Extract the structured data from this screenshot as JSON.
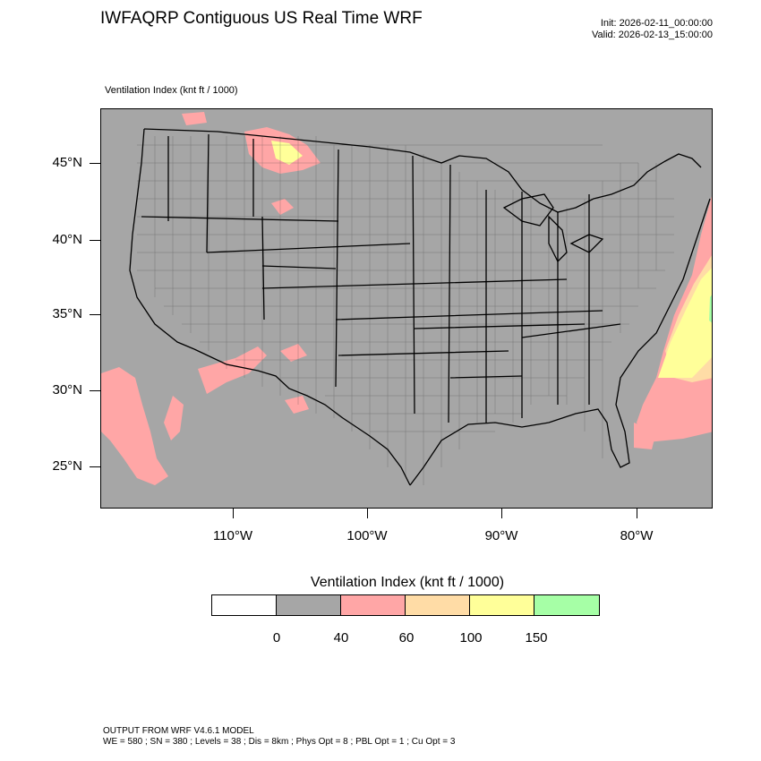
{
  "header": {
    "title": "IWFAQRP Contiguous US Real Time WRF",
    "init": "Init: 2026-02-11_00:00:00",
    "valid": "Valid: 2026-02-13_15:00:00",
    "field_label": "Ventilation Index   (knt ft / 1000)"
  },
  "map": {
    "background_color": "#a6a6a6",
    "lat_labels": [
      "45°N",
      "40°N",
      "35°N",
      "30°N",
      "25°N"
    ],
    "lon_labels": [
      "110°W",
      "100°W",
      "90°W",
      "80°W"
    ]
  },
  "colorbar": {
    "title": "Ventilation Index  (knt ft / 1000)",
    "colors": [
      "#ffffff",
      "#a6a6a6",
      "#ffa6a6",
      "#ffdca6",
      "#ffff99",
      "#a6ffa6"
    ],
    "labels": [
      "0",
      "40",
      "60",
      "100",
      "150"
    ]
  },
  "footer": {
    "line1": "OUTPUT FROM WRF V4.6.1 MODEL",
    "line2": "WE = 580 ; SN = 380 ; Levels = 38 ; Dis = 8km ; Phys Opt = 8 ; PBL Opt = 1 ; Cu Opt = 3"
  }
}
